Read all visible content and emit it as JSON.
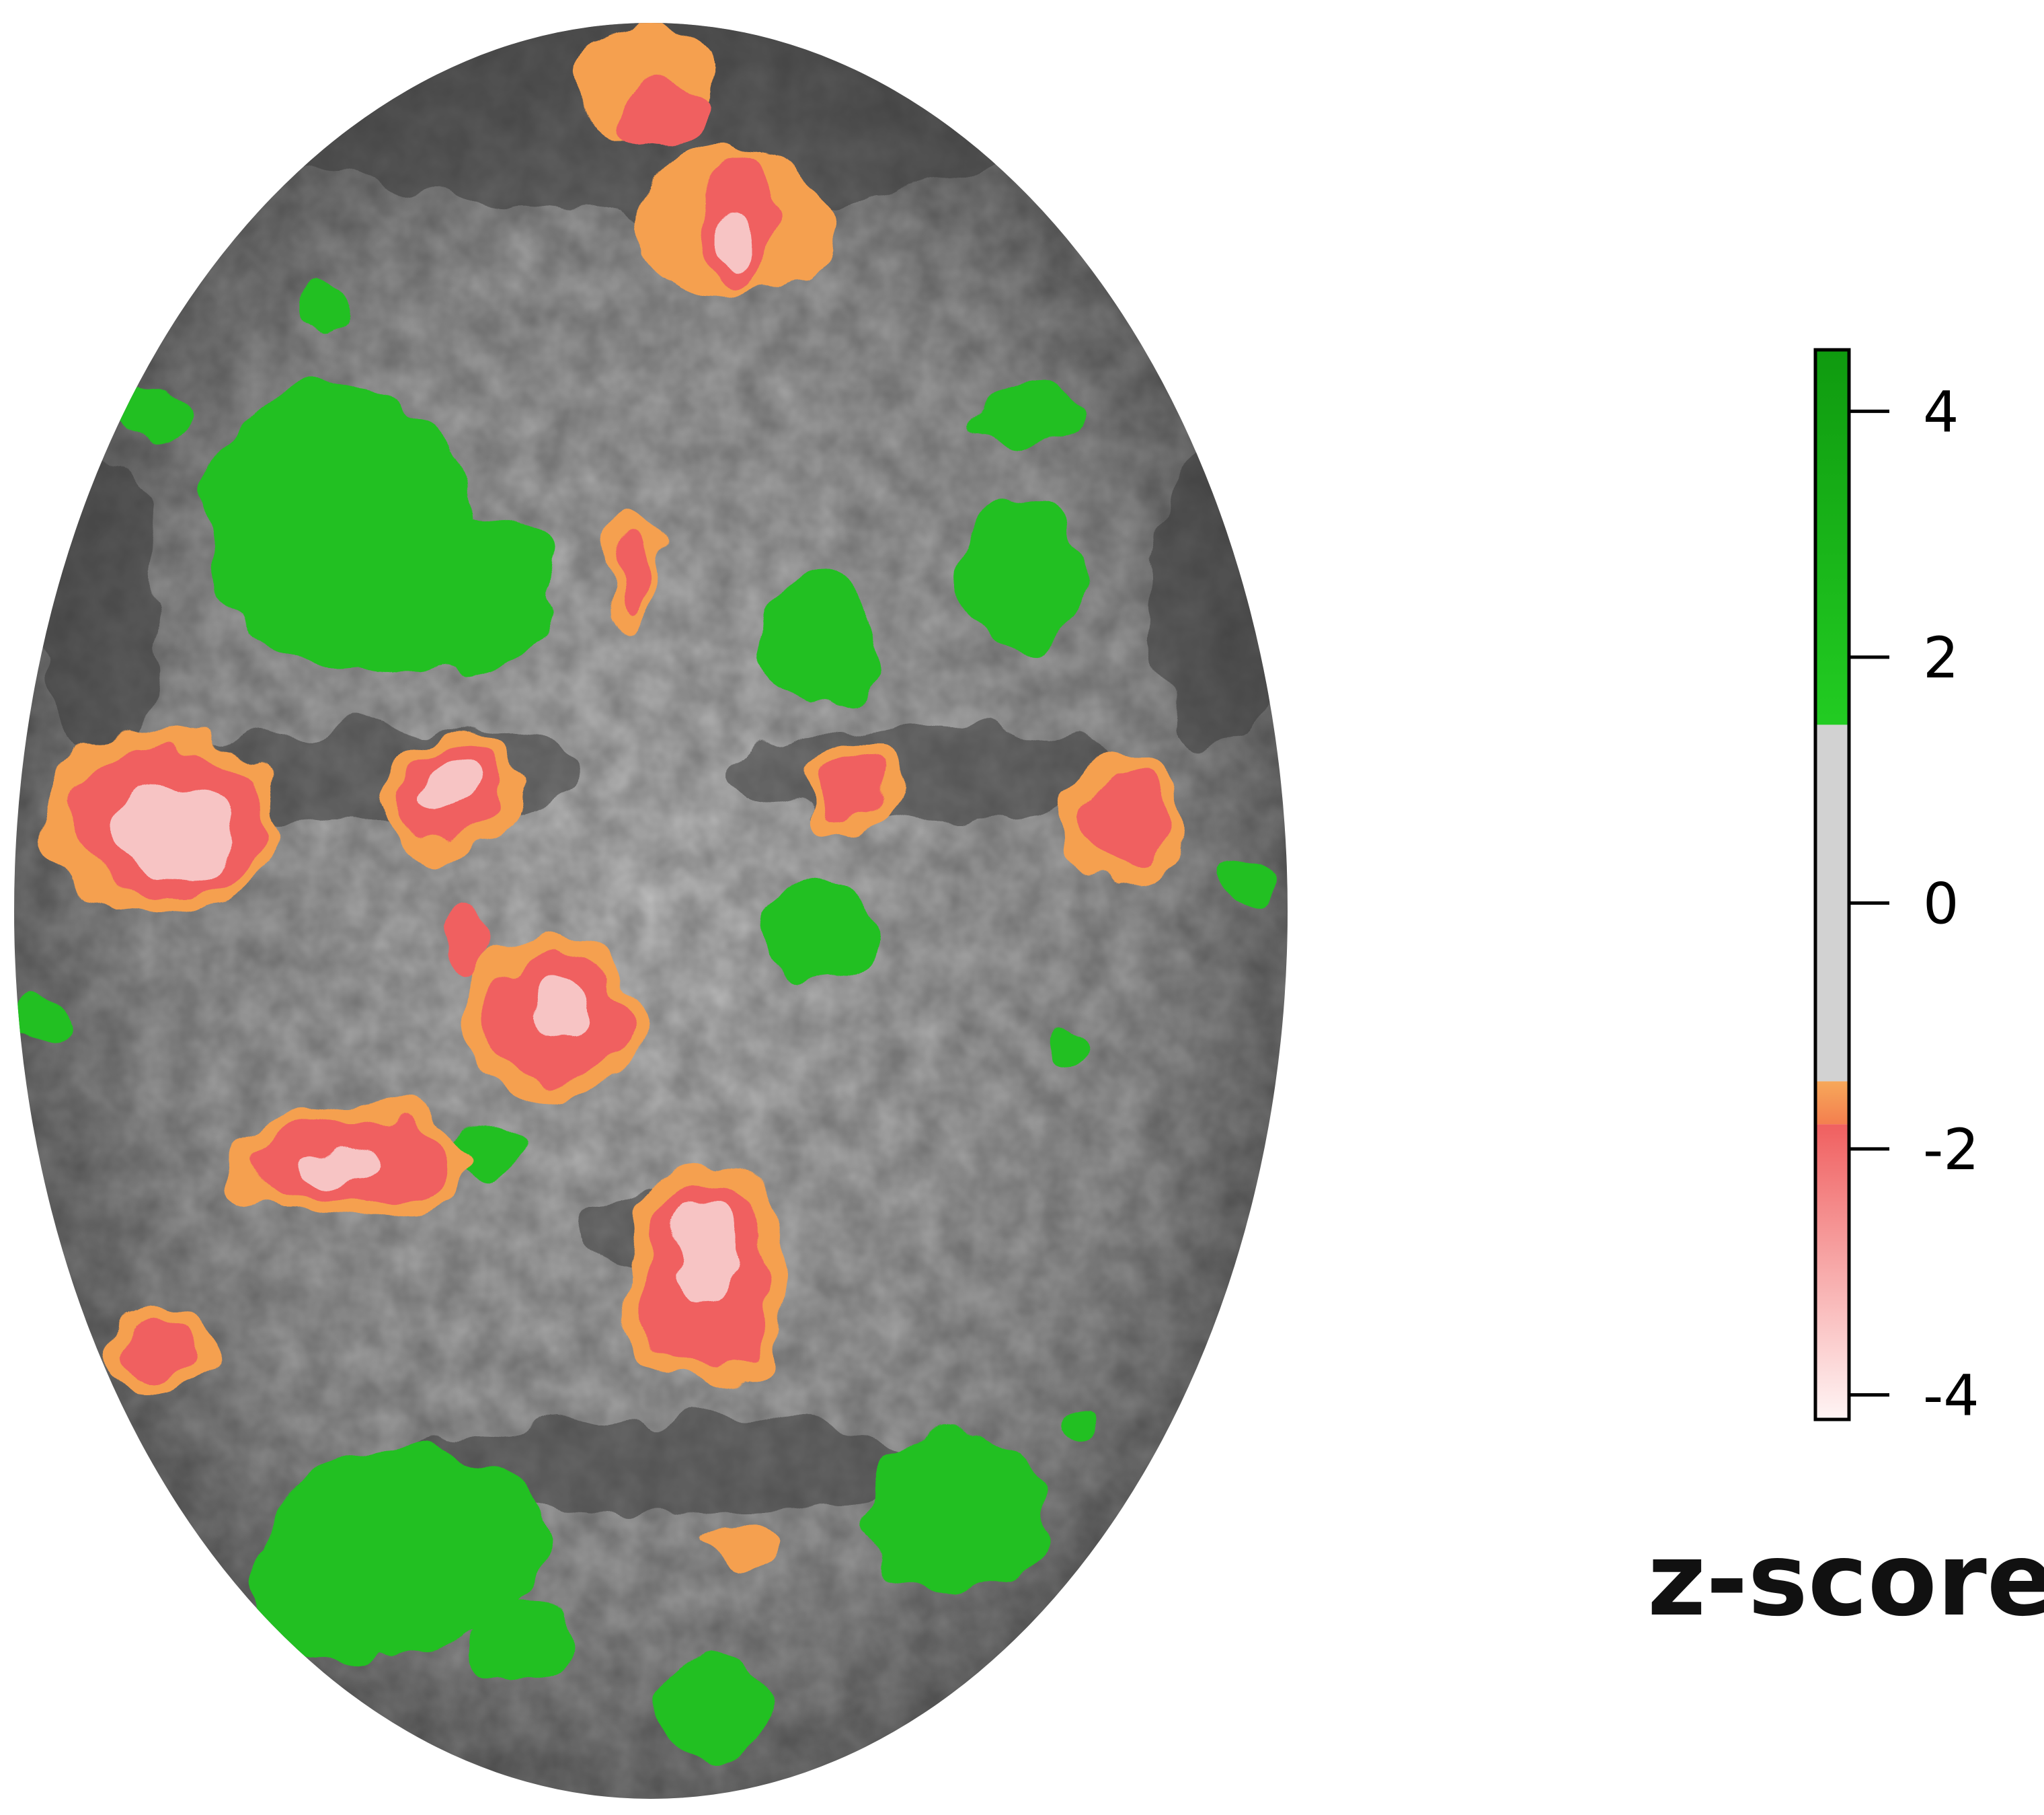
{
  "figure": {
    "map_shape": "face-ellipse",
    "colors": {
      "background": "#ffffff",
      "gray_dark": "#4a4a4a",
      "gray_light": "#bdbdbd",
      "green_dark": "#18a018",
      "green_light": "#22cc22",
      "orange": "#f5a050",
      "red": "#f06060",
      "pink": "#f4bcbc",
      "white": "#fff0f0"
    },
    "colorbar": {
      "title": "z-score",
      "ticks": [
        {
          "value": 4,
          "label": "4"
        },
        {
          "value": 2,
          "label": "2"
        },
        {
          "value": 0,
          "label": "0"
        },
        {
          "value": -2,
          "label": "-2"
        },
        {
          "value": -4,
          "label": "-4"
        }
      ],
      "range": [
        -4.2,
        4.5
      ],
      "segments": [
        {
          "from": 1.45,
          "to": 4.5,
          "gradient": [
            "#22cc22",
            "#0f9a0f"
          ]
        },
        {
          "from": -1.45,
          "to": 1.45,
          "color": "#d2d2d2"
        },
        {
          "from": -1.8,
          "to": -1.45,
          "gradient": [
            "#f47f4f",
            "#f6a85a"
          ]
        },
        {
          "from": -4.2,
          "to": -1.8,
          "gradient": [
            "#fff5f5",
            "#f06060"
          ]
        }
      ]
    }
  }
}
